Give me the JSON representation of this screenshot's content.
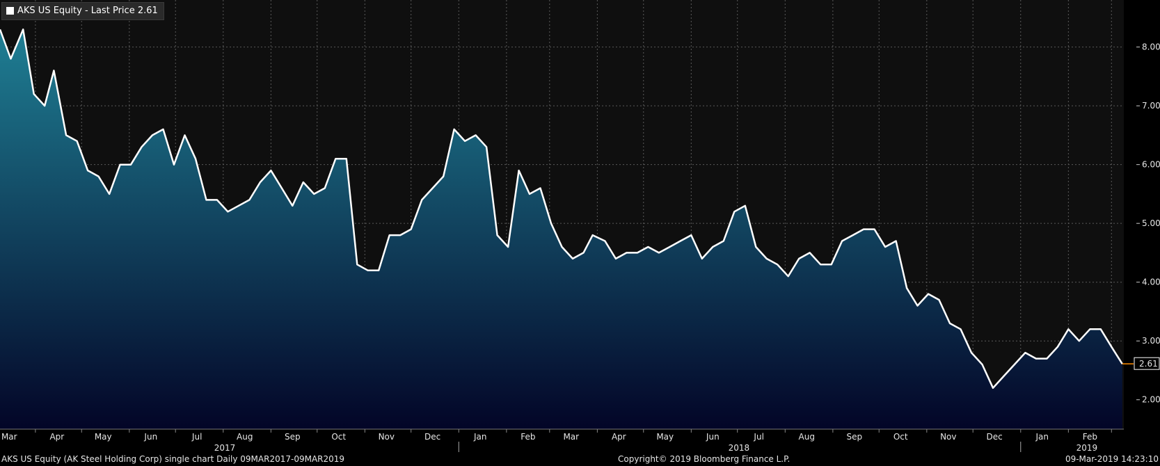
{
  "legend": {
    "label": "AKS US Equity - Last Price 2.61"
  },
  "footer": {
    "left": "AKS US Equity (AK Steel Holding Corp) single chart  Daily 09MAR2017-09MAR2019",
    "center": "Copyright© 2019 Bloomberg Finance L.P.",
    "right": "09-Mar-2019 14:23:10"
  },
  "colors": {
    "background": "#000000",
    "plot_background": "#0f0f0f",
    "line": "#ffffff",
    "area_top": "#1f7f94",
    "area_bottom": "#030527",
    "grid": "#5a5a5a",
    "last_price_marker": "#ff8c00"
  },
  "chart_data": {
    "type": "area",
    "title": "",
    "series": [
      {
        "name": "AKS US Equity - Last Price",
        "x": [
          "2017-03-09",
          "2017-03-16",
          "2017-03-24",
          "2017-03-31",
          "2017-04-07",
          "2017-04-13",
          "2017-04-21",
          "2017-04-28",
          "2017-05-05",
          "2017-05-12",
          "2017-05-19",
          "2017-05-26",
          "2017-06-02",
          "2017-06-09",
          "2017-06-16",
          "2017-06-23",
          "2017-06-30",
          "2017-07-07",
          "2017-07-14",
          "2017-07-21",
          "2017-07-28",
          "2017-08-04",
          "2017-08-11",
          "2017-08-18",
          "2017-08-25",
          "2017-09-01",
          "2017-09-08",
          "2017-09-15",
          "2017-09-22",
          "2017-09-29",
          "2017-10-06",
          "2017-10-13",
          "2017-10-20",
          "2017-10-27",
          "2017-11-03",
          "2017-11-10",
          "2017-11-17",
          "2017-11-24",
          "2017-12-01",
          "2017-12-08",
          "2017-12-15",
          "2017-12-22",
          "2017-12-29",
          "2018-01-05",
          "2018-01-12",
          "2018-01-19",
          "2018-01-26",
          "2018-02-02",
          "2018-02-09",
          "2018-02-16",
          "2018-02-23",
          "2018-03-02",
          "2018-03-09",
          "2018-03-16",
          "2018-03-23",
          "2018-03-29",
          "2018-04-06",
          "2018-04-13",
          "2018-04-20",
          "2018-04-27",
          "2018-05-04",
          "2018-05-11",
          "2018-05-18",
          "2018-05-25",
          "2018-06-01",
          "2018-06-08",
          "2018-06-15",
          "2018-06-22",
          "2018-06-29",
          "2018-07-06",
          "2018-07-13",
          "2018-07-20",
          "2018-07-27",
          "2018-08-03",
          "2018-08-10",
          "2018-08-17",
          "2018-08-24",
          "2018-08-31",
          "2018-09-07",
          "2018-09-14",
          "2018-09-21",
          "2018-09-28",
          "2018-10-05",
          "2018-10-12",
          "2018-10-19",
          "2018-10-26",
          "2018-11-02",
          "2018-11-09",
          "2018-11-16",
          "2018-11-23",
          "2018-11-30",
          "2018-12-07",
          "2018-12-14",
          "2018-12-21",
          "2018-12-28",
          "2019-01-04",
          "2019-01-11",
          "2019-01-18",
          "2019-01-25",
          "2019-02-01",
          "2019-02-08",
          "2019-02-15",
          "2019-02-22",
          "2019-03-01",
          "2019-03-08"
        ],
        "values": [
          8.3,
          7.8,
          8.3,
          7.2,
          7.0,
          7.6,
          6.5,
          6.4,
          5.9,
          5.8,
          5.5,
          6.0,
          6.0,
          6.3,
          6.5,
          6.6,
          6.0,
          6.5,
          6.1,
          5.4,
          5.4,
          5.2,
          5.3,
          5.4,
          5.7,
          5.9,
          5.6,
          5.3,
          5.7,
          5.5,
          5.6,
          6.1,
          6.1,
          4.3,
          4.2,
          4.2,
          4.8,
          4.8,
          4.9,
          5.4,
          5.6,
          5.8,
          6.6,
          6.4,
          6.5,
          6.3,
          4.8,
          4.6,
          5.9,
          5.5,
          5.6,
          5.0,
          4.6,
          4.4,
          4.5,
          4.8,
          4.7,
          4.4,
          4.5,
          4.5,
          4.6,
          4.5,
          4.6,
          4.7,
          4.8,
          4.4,
          4.6,
          4.7,
          5.2,
          5.3,
          4.6,
          4.4,
          4.3,
          4.1,
          4.4,
          4.5,
          4.3,
          4.3,
          4.7,
          4.8,
          4.9,
          4.9,
          4.6,
          4.7,
          3.9,
          3.6,
          3.8,
          3.7,
          3.3,
          3.2,
          2.8,
          2.6,
          2.2,
          2.4,
          2.6,
          2.8,
          2.7,
          2.7,
          2.9,
          3.2,
          3.0,
          3.2,
          3.2,
          2.9,
          2.61
        ]
      }
    ],
    "ylim": [
      1.5,
      8.8
    ],
    "yticks": [
      2.0,
      3.0,
      4.0,
      5.0,
      6.0,
      7.0,
      8.0
    ],
    "ytick_labels": [
      "2.00",
      "3.00",
      "4.00",
      "5.00",
      "6.00",
      "7.00",
      "8.00"
    ],
    "x_start": "2017-03-09",
    "x_end": "2019-03-09",
    "month_labels": [
      {
        "date": "2017-03-15",
        "label": "Mar"
      },
      {
        "date": "2017-04-15",
        "label": "Apr"
      },
      {
        "date": "2017-05-15",
        "label": "May"
      },
      {
        "date": "2017-06-15",
        "label": "Jun"
      },
      {
        "date": "2017-07-15",
        "label": "Jul"
      },
      {
        "date": "2017-08-15",
        "label": "Aug"
      },
      {
        "date": "2017-09-15",
        "label": "Sep"
      },
      {
        "date": "2017-10-15",
        "label": "Oct"
      },
      {
        "date": "2017-11-15",
        "label": "Nov"
      },
      {
        "date": "2017-12-15",
        "label": "Dec"
      },
      {
        "date": "2018-01-15",
        "label": "Jan"
      },
      {
        "date": "2018-02-15",
        "label": "Feb"
      },
      {
        "date": "2018-03-15",
        "label": "Mar"
      },
      {
        "date": "2018-04-15",
        "label": "Apr"
      },
      {
        "date": "2018-05-15",
        "label": "May"
      },
      {
        "date": "2018-06-15",
        "label": "Jun"
      },
      {
        "date": "2018-07-15",
        "label": "Jul"
      },
      {
        "date": "2018-08-15",
        "label": "Aug"
      },
      {
        "date": "2018-09-15",
        "label": "Sep"
      },
      {
        "date": "2018-10-15",
        "label": "Oct"
      },
      {
        "date": "2018-11-15",
        "label": "Nov"
      },
      {
        "date": "2018-12-15",
        "label": "Dec"
      },
      {
        "date": "2019-01-15",
        "label": "Jan"
      },
      {
        "date": "2019-02-15",
        "label": "Feb"
      }
    ],
    "year_labels": [
      {
        "date": "2017-08-02",
        "label": "2017"
      },
      {
        "date": "2018-07-02",
        "label": "2018"
      },
      {
        "date": "2019-02-13",
        "label": "2019"
      }
    ],
    "year_boundaries": [
      "2018-01-01",
      "2019-01-01"
    ],
    "gridlines": [
      "2017-04-01",
      "2017-05-01",
      "2017-06-01",
      "2017-07-01",
      "2017-08-01",
      "2017-09-01",
      "2017-10-01",
      "2017-11-01",
      "2017-12-01",
      "2018-01-01",
      "2018-02-01",
      "2018-03-01",
      "2018-04-01",
      "2018-05-01",
      "2018-06-01",
      "2018-07-01",
      "2018-08-01",
      "2018-09-01",
      "2018-10-01",
      "2018-11-01",
      "2018-12-01",
      "2019-01-01",
      "2019-02-01",
      "2019-03-01"
    ],
    "last_value_label": "2.61",
    "grid": true
  }
}
